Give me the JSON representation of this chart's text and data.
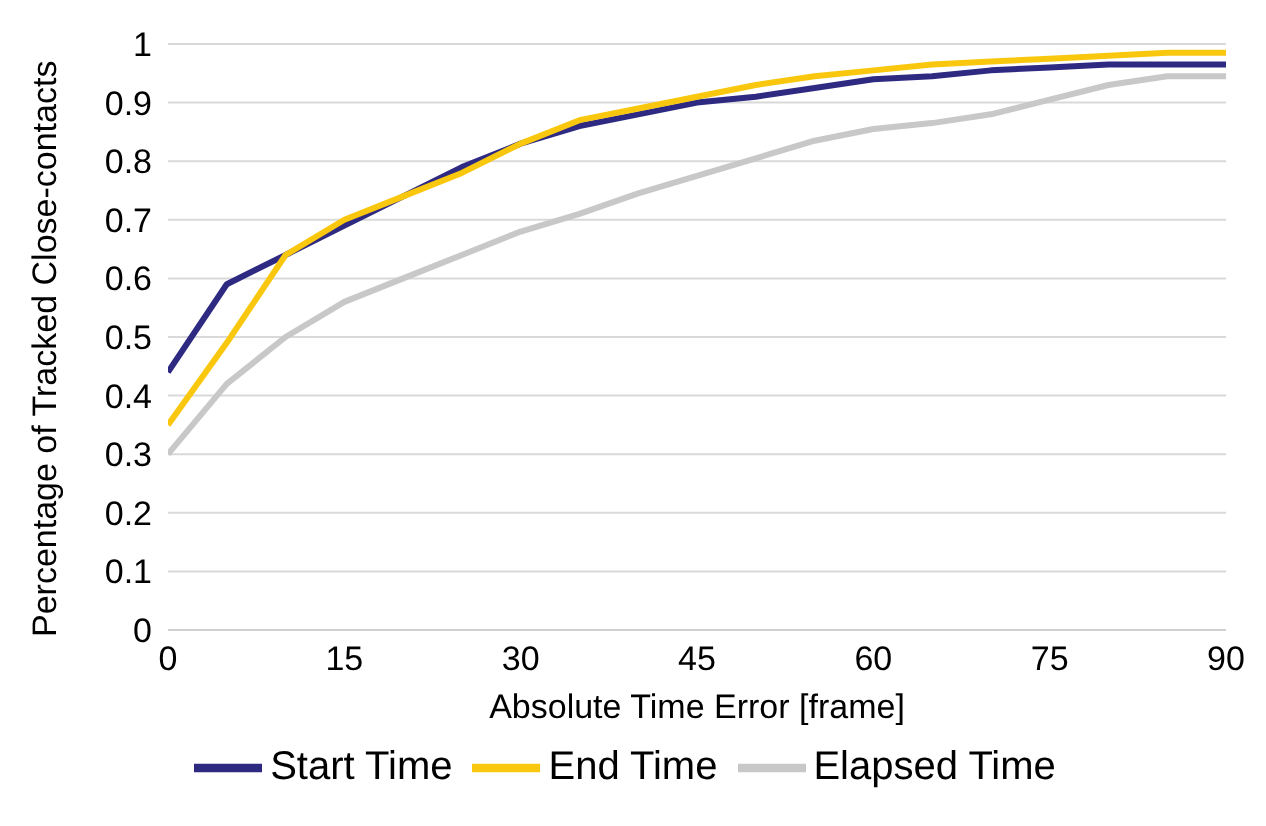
{
  "chart_data": {
    "type": "line",
    "xlabel": "Absolute Time Error [frame]",
    "ylabel": "Percentage of Tracked Close-contacts",
    "x": [
      0,
      5,
      10,
      15,
      20,
      25,
      30,
      35,
      40,
      45,
      50,
      55,
      60,
      65,
      70,
      75,
      80,
      85,
      90
    ],
    "series": [
      {
        "name": "Start Time",
        "color": "#2e2a82",
        "values": [
          0.44,
          0.59,
          0.64,
          0.69,
          0.74,
          0.79,
          0.83,
          0.86,
          0.88,
          0.9,
          0.91,
          0.925,
          0.94,
          0.945,
          0.955,
          0.96,
          0.965,
          0.965,
          0.965
        ]
      },
      {
        "name": "End Time",
        "color": "#f9c80e",
        "values": [
          0.35,
          0.49,
          0.64,
          0.7,
          0.74,
          0.78,
          0.83,
          0.87,
          0.89,
          0.91,
          0.93,
          0.945,
          0.955,
          0.965,
          0.97,
          0.975,
          0.98,
          0.985,
          0.985
        ]
      },
      {
        "name": "Elapsed Time",
        "color": "#c8c8c8",
        "values": [
          0.3,
          0.42,
          0.5,
          0.56,
          0.6,
          0.64,
          0.68,
          0.71,
          0.745,
          0.775,
          0.805,
          0.835,
          0.855,
          0.865,
          0.88,
          0.905,
          0.93,
          0.945,
          0.945
        ]
      }
    ],
    "xlim": [
      0,
      90
    ],
    "xticks": [
      0,
      15,
      30,
      45,
      60,
      75,
      90
    ],
    "ylim": [
      0,
      1
    ],
    "yticks": [
      0,
      0.1,
      0.2,
      0.3,
      0.4,
      0.5,
      0.6,
      0.7,
      0.8,
      0.9,
      1
    ],
    "grid": "y",
    "legend": "bottom",
    "marker": "none",
    "line_style": "solid"
  }
}
